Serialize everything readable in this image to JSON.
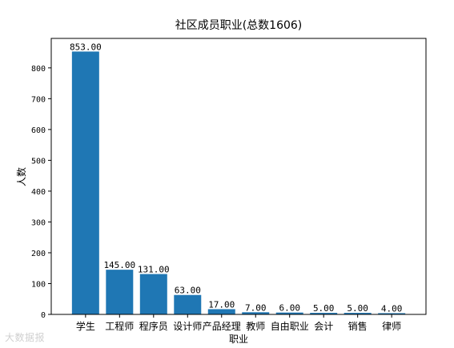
{
  "chart_data": {
    "type": "bar",
    "title": "社区成员职业(总数1606)",
    "xlabel": "职业",
    "ylabel": "人数",
    "categories": [
      "学生",
      "工程师",
      "程序员",
      "设计师",
      "产品经理",
      "教师",
      "自由职业",
      "会计",
      "销售",
      "律师"
    ],
    "values": [
      853,
      145,
      131,
      63,
      17,
      7,
      6,
      5,
      5,
      4
    ],
    "value_labels": [
      "853.00",
      "145.00",
      "131.00",
      "63.00",
      "17.00",
      "7.00",
      "6.00",
      "5.00",
      "5.00",
      "4.00"
    ],
    "yticks": [
      0,
      100,
      200,
      300,
      400,
      500,
      600,
      700,
      800
    ],
    "ylim": [
      0,
      895.65
    ],
    "bar_color": "#1f77b4",
    "grid": false,
    "legend": "none"
  },
  "watermark": "大数据报"
}
